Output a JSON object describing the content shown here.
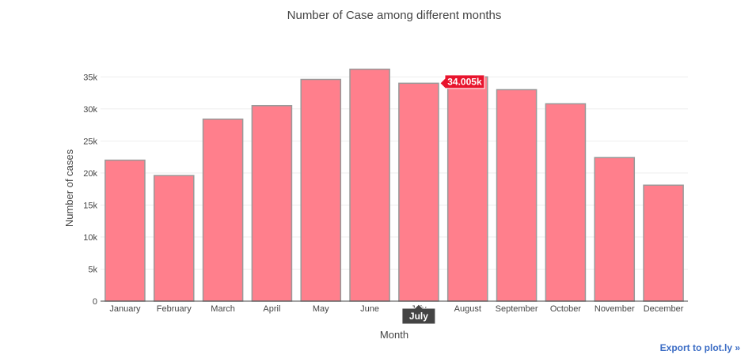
{
  "chart_data": {
    "type": "bar",
    "title": "Number of Case among different months",
    "xlabel": "Month",
    "ylabel": "Number of cases",
    "categories": [
      "January",
      "February",
      "March",
      "April",
      "May",
      "June",
      "July",
      "August",
      "September",
      "October",
      "November",
      "December"
    ],
    "values": [
      22000,
      19600,
      28400,
      30500,
      34600,
      36200,
      34005,
      35000,
      33000,
      30800,
      22400,
      18100
    ],
    "ylim": [
      0,
      37500
    ],
    "y_ticks": [
      0,
      5000,
      10000,
      15000,
      20000,
      25000,
      30000,
      35000
    ],
    "y_tick_labels": [
      "0",
      "5k",
      "10k",
      "15k",
      "20k",
      "25k",
      "30k",
      "35k"
    ],
    "grid": true,
    "bar_color": "#ff7f8c",
    "bar_border_color": "#999999",
    "hover": {
      "category_index": 6,
      "value_label": "34.005k",
      "category_label": "July",
      "value_label_color": "#e8142d",
      "category_label_color": "#444444"
    }
  },
  "export_link": "Export to plot.ly »"
}
